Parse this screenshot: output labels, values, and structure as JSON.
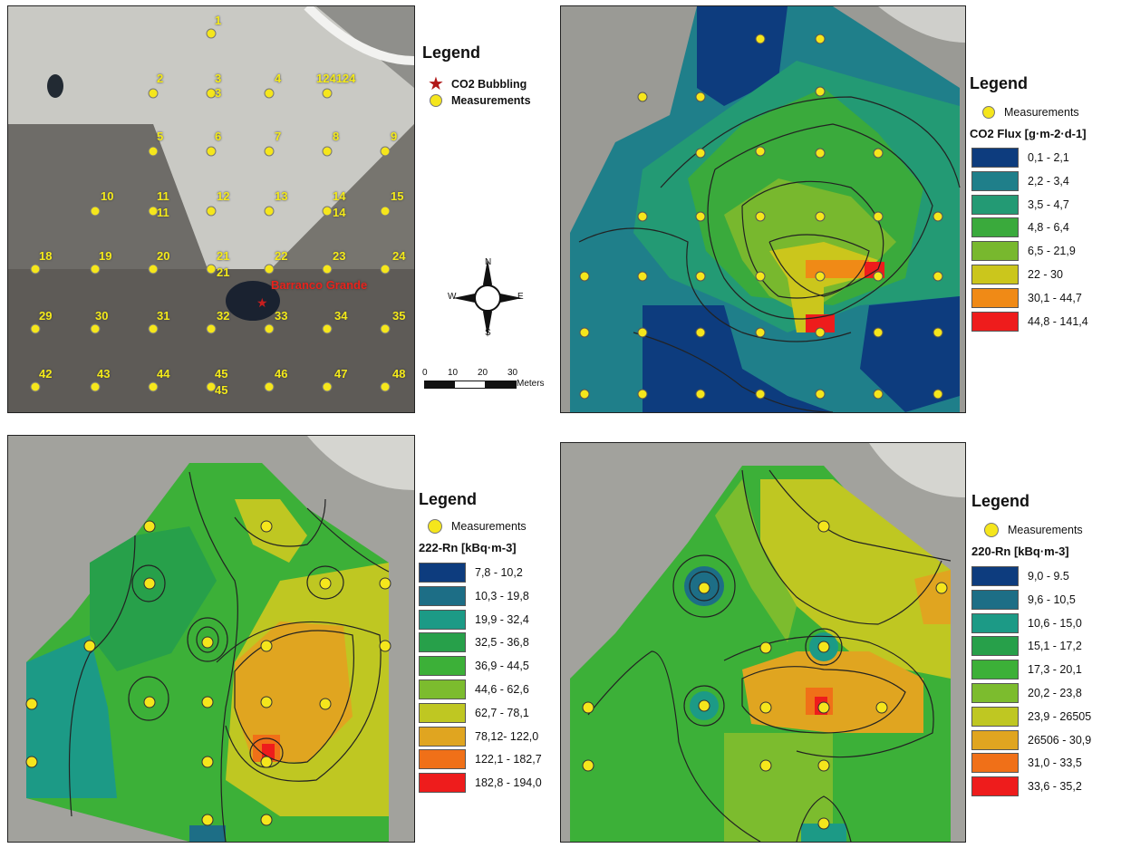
{
  "panel_a": {
    "legend_title": "Legend",
    "legend_bubbling": "CO2 Bubbling",
    "legend_measurements": "Measurements",
    "place_label": "Barranco Grande",
    "point_labels": [
      {
        "t": "1"
      },
      {
        "t": "2"
      },
      {
        "t": "3"
      },
      {
        "t": "3"
      },
      {
        "t": "4"
      },
      {
        "t": "124124"
      },
      {
        "t": "5"
      },
      {
        "t": "6"
      },
      {
        "t": "7"
      },
      {
        "t": "8"
      },
      {
        "t": "9"
      },
      {
        "t": "10"
      },
      {
        "t": "11"
      },
      {
        "t": "11"
      },
      {
        "t": "12"
      },
      {
        "t": "13"
      },
      {
        "t": "14"
      },
      {
        "t": "14"
      },
      {
        "t": "15"
      },
      {
        "t": "18"
      },
      {
        "t": "19"
      },
      {
        "t": "20"
      },
      {
        "t": "21"
      },
      {
        "t": "21"
      },
      {
        "t": "22"
      },
      {
        "t": "23"
      },
      {
        "t": "24"
      },
      {
        "t": "29"
      },
      {
        "t": "30"
      },
      {
        "t": "31"
      },
      {
        "t": "32"
      },
      {
        "t": "33"
      },
      {
        "t": "34"
      },
      {
        "t": "35"
      },
      {
        "t": "42"
      },
      {
        "t": "43"
      },
      {
        "t": "44"
      },
      {
        "t": "45"
      },
      {
        "t": "45"
      },
      {
        "t": "46"
      },
      {
        "t": "47"
      },
      {
        "t": "48"
      }
    ]
  },
  "compass": {
    "n": "N",
    "s": "S",
    "e": "E",
    "w": "W"
  },
  "scalebar": {
    "ticks": [
      "0",
      "10",
      "20",
      "30"
    ],
    "unit": "Meters"
  },
  "panel_b": {
    "legend_title": "Legend",
    "legend_measurements": "Measurements",
    "variable": "CO2 Flux [g·m-2·d-1]",
    "classes": [
      {
        "label": "0,1 - 2,1",
        "color": "#0d3c7e"
      },
      {
        "label": "2,2 - 3,4",
        "color": "#1f7f8a"
      },
      {
        "label": "3,5 - 4,7",
        "color": "#239a74"
      },
      {
        "label": "4,8 - 6,4",
        "color": "#3aaa3c"
      },
      {
        "label": "6,5 - 21,9",
        "color": "#78b82e"
      },
      {
        "label": "22 - 30",
        "color": "#cbc61c"
      },
      {
        "label": "30,1 - 44,7",
        "color": "#f08a16"
      },
      {
        "label": "44,8 - 141,4",
        "color": "#ee1c1c"
      }
    ]
  },
  "panel_c": {
    "legend_title": "Legend",
    "legend_measurements": "Measurements",
    "variable": "222-Rn [kBq·m-3]",
    "classes": [
      {
        "label": "7,8 - 10,2",
        "color": "#0d3c7e"
      },
      {
        "label": "10,3 - 19,8",
        "color": "#1d6e86"
      },
      {
        "label": "19,9 - 32,4",
        "color": "#1c9a86"
      },
      {
        "label": "32,5 - 36,8",
        "color": "#27a04a"
      },
      {
        "label": "36,9 - 44,5",
        "color": "#3cb038"
      },
      {
        "label": "44,6 - 62,6",
        "color": "#7cbc2e"
      },
      {
        "label": "62,7 - 78,1",
        "color": "#bfc722"
      },
      {
        "label": "78,12- 122,0",
        "color": "#e0a520"
      },
      {
        "label": "122,1 - 182,7",
        "color": "#f07018"
      },
      {
        "label": "182,8 - 194,0",
        "color": "#ee1c1c"
      }
    ]
  },
  "panel_d": {
    "legend_title": "Legend",
    "legend_measurements": "Measurements",
    "variable": "220-Rn [kBq·m-3]",
    "classes": [
      {
        "label": "9,0 - 9.5",
        "color": "#0d3c7e"
      },
      {
        "label": "9,6 - 10,5",
        "color": "#1d6e86"
      },
      {
        "label": "10,6 - 15,0",
        "color": "#1c9a86"
      },
      {
        "label": "15,1 - 17,2",
        "color": "#27a04a"
      },
      {
        "label": "17,3 - 20,1",
        "color": "#3cb038"
      },
      {
        "label": "20,2 - 23,8",
        "color": "#7cbc2e"
      },
      {
        "label": "23,9 - 26505",
        "color": "#bfc722"
      },
      {
        "label": "26506 - 30,9",
        "color": "#e0a520"
      },
      {
        "label": "31,0 - 33,5",
        "color": "#f07018"
      },
      {
        "label": "33,6 - 35,2",
        "color": "#ee1c1c"
      }
    ]
  }
}
